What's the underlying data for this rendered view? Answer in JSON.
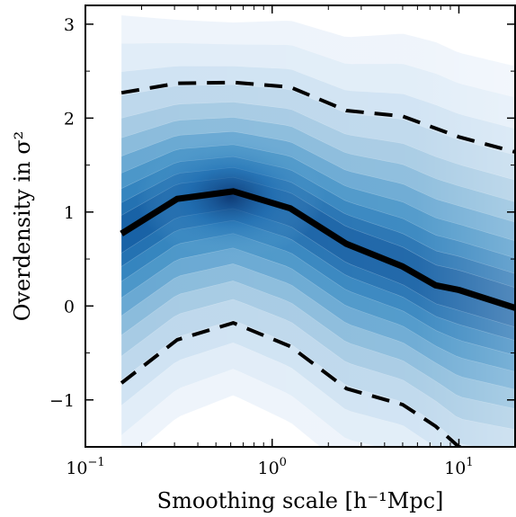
{
  "chart_data": {
    "type": "line",
    "xlabel": "Smoothing scale [h⁻¹Mpc]",
    "ylabel": "Overdensity in σ²",
    "xscale": "log",
    "xlim": [
      0.1,
      20
    ],
    "ylim": [
      -1.5,
      3.2
    ],
    "x_ticks": [
      {
        "value": 0.1,
        "base": "10",
        "exp": "−1"
      },
      {
        "value": 1,
        "base": "10",
        "exp": "0"
      },
      {
        "value": 10,
        "base": "10",
        "exp": "1"
      }
    ],
    "y_ticks": [
      {
        "value": -1,
        "label": "−1"
      },
      {
        "value": 0,
        "label": "0"
      },
      {
        "value": 1,
        "label": "1"
      },
      {
        "value": 2,
        "label": "2"
      },
      {
        "value": 3,
        "label": "3"
      }
    ],
    "grid": false,
    "legend": "none",
    "colormap": "Blues",
    "background_density": {
      "x_range": [
        0.156,
        20
      ],
      "peak_x": 0.6,
      "peak_y": 1.45
    },
    "series": [
      {
        "style": "solid",
        "color": "#000000",
        "x": [
          0.156,
          0.31,
          0.62,
          1.25,
          2.5,
          5.0,
          7.5,
          10.0,
          20.0
        ],
        "y": [
          0.77,
          1.14,
          1.22,
          1.04,
          0.66,
          0.42,
          0.22,
          0.17,
          -0.02
        ]
      },
      {
        "style": "dashed",
        "color": "#000000",
        "x": [
          0.156,
          0.31,
          0.62,
          1.25,
          2.5,
          5.0,
          10.0,
          20.0
        ],
        "y": [
          2.27,
          2.37,
          2.38,
          2.33,
          2.08,
          2.02,
          1.8,
          1.64
        ]
      },
      {
        "style": "dashed",
        "color": "#000000",
        "x": [
          0.156,
          0.31,
          0.62,
          1.25,
          2.5,
          5.0,
          7.5,
          10.0,
          20.0
        ],
        "y": [
          -0.82,
          -0.36,
          -0.18,
          -0.43,
          -0.88,
          -1.05,
          -1.28,
          -1.5,
          -1.6
        ]
      }
    ]
  }
}
